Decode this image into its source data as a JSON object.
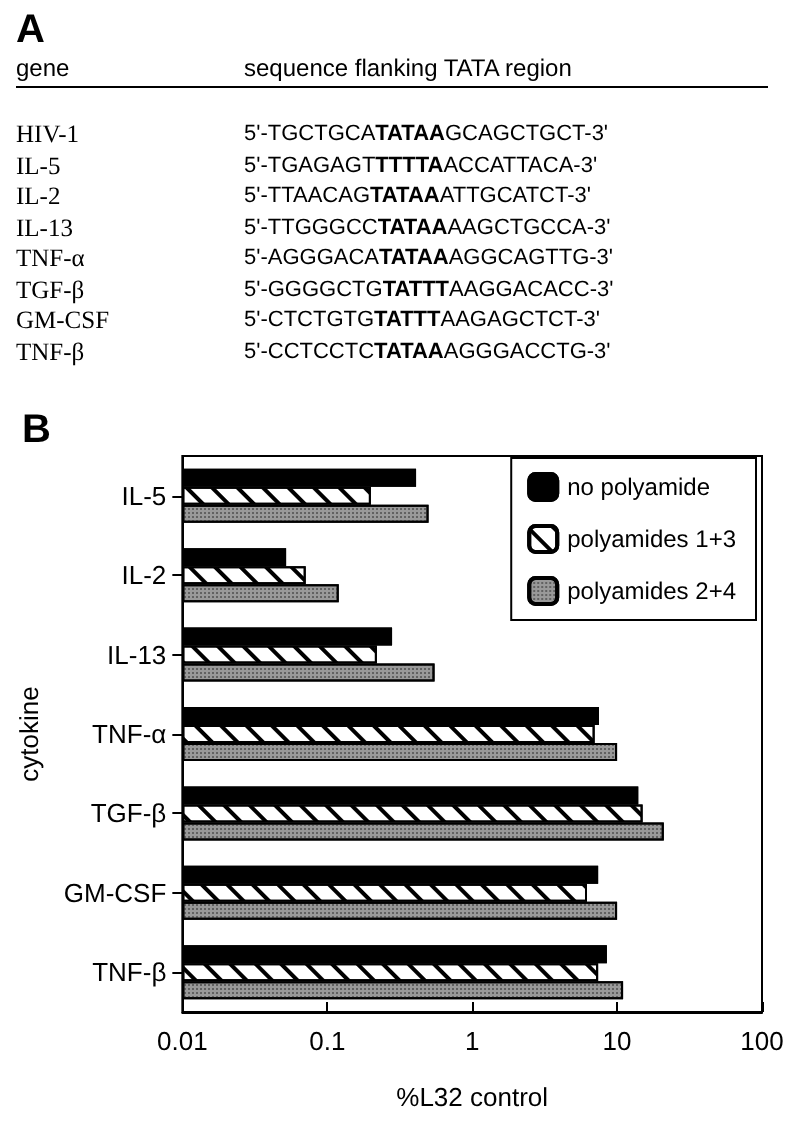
{
  "chart_data": [
    {
      "type": "other",
      "title": "A",
      "annotations": [
        "gene",
        "sequence flanking TATA region",
        "HIV-1",
        "5'-TGCTGCATATAAGCAGCTGCT-3'",
        "IL-5",
        "5'-TGAGAGTTTTTAACCATTACA-3'",
        "IL-2",
        "5'-TTAACAGTATAAATTGCATCT-3'",
        "IL-13",
        "5'-TTGGGCCTATAAAAGCTGCCA-3'",
        "TNF-α",
        "5'-AGGGACATATAAAGGCAGTTG-3'",
        "TGF-β",
        "5'-GGGGCTGTATTTAAGGACACC-3'",
        "GM-CSF",
        "5'-CTCTGTGTATTTAAGAGCTCT-3'",
        "TNF-β",
        "5'-CCTCCTCTATAAAGGGACCTG-3'"
      ]
    },
    {
      "type": "bar",
      "orientation": "horizontal",
      "title": "B",
      "xlabel": "%L32 control",
      "ylabel": "cytokine",
      "categories": [
        "IL-5",
        "IL-2",
        "IL-13",
        "TNF-α",
        "TGF-β",
        "GM-CSF",
        "TNF-β"
      ],
      "series": [
        {
          "name": "no polyamide",
          "color": "#000000",
          "values": [
            0.41,
            0.052,
            0.28,
            7.5,
            14,
            7.4,
            8.5
          ]
        },
        {
          "name": "polyamides 1+3",
          "color": "#ffffff",
          "values": [
            0.2,
            0.071,
            0.22,
            7,
            15,
            6.2,
            7.4
          ]
        },
        {
          "name": "polyamides 2+4",
          "color": "#999999",
          "values": [
            0.5,
            0.12,
            0.55,
            10,
            21,
            10,
            11
          ]
        }
      ],
      "log": "x",
      "xlim": [
        0.01,
        100
      ],
      "xticks": [
        0.01,
        0.1,
        1,
        10,
        100
      ],
      "grid": false,
      "legend": "top right"
    }
  ]
}
